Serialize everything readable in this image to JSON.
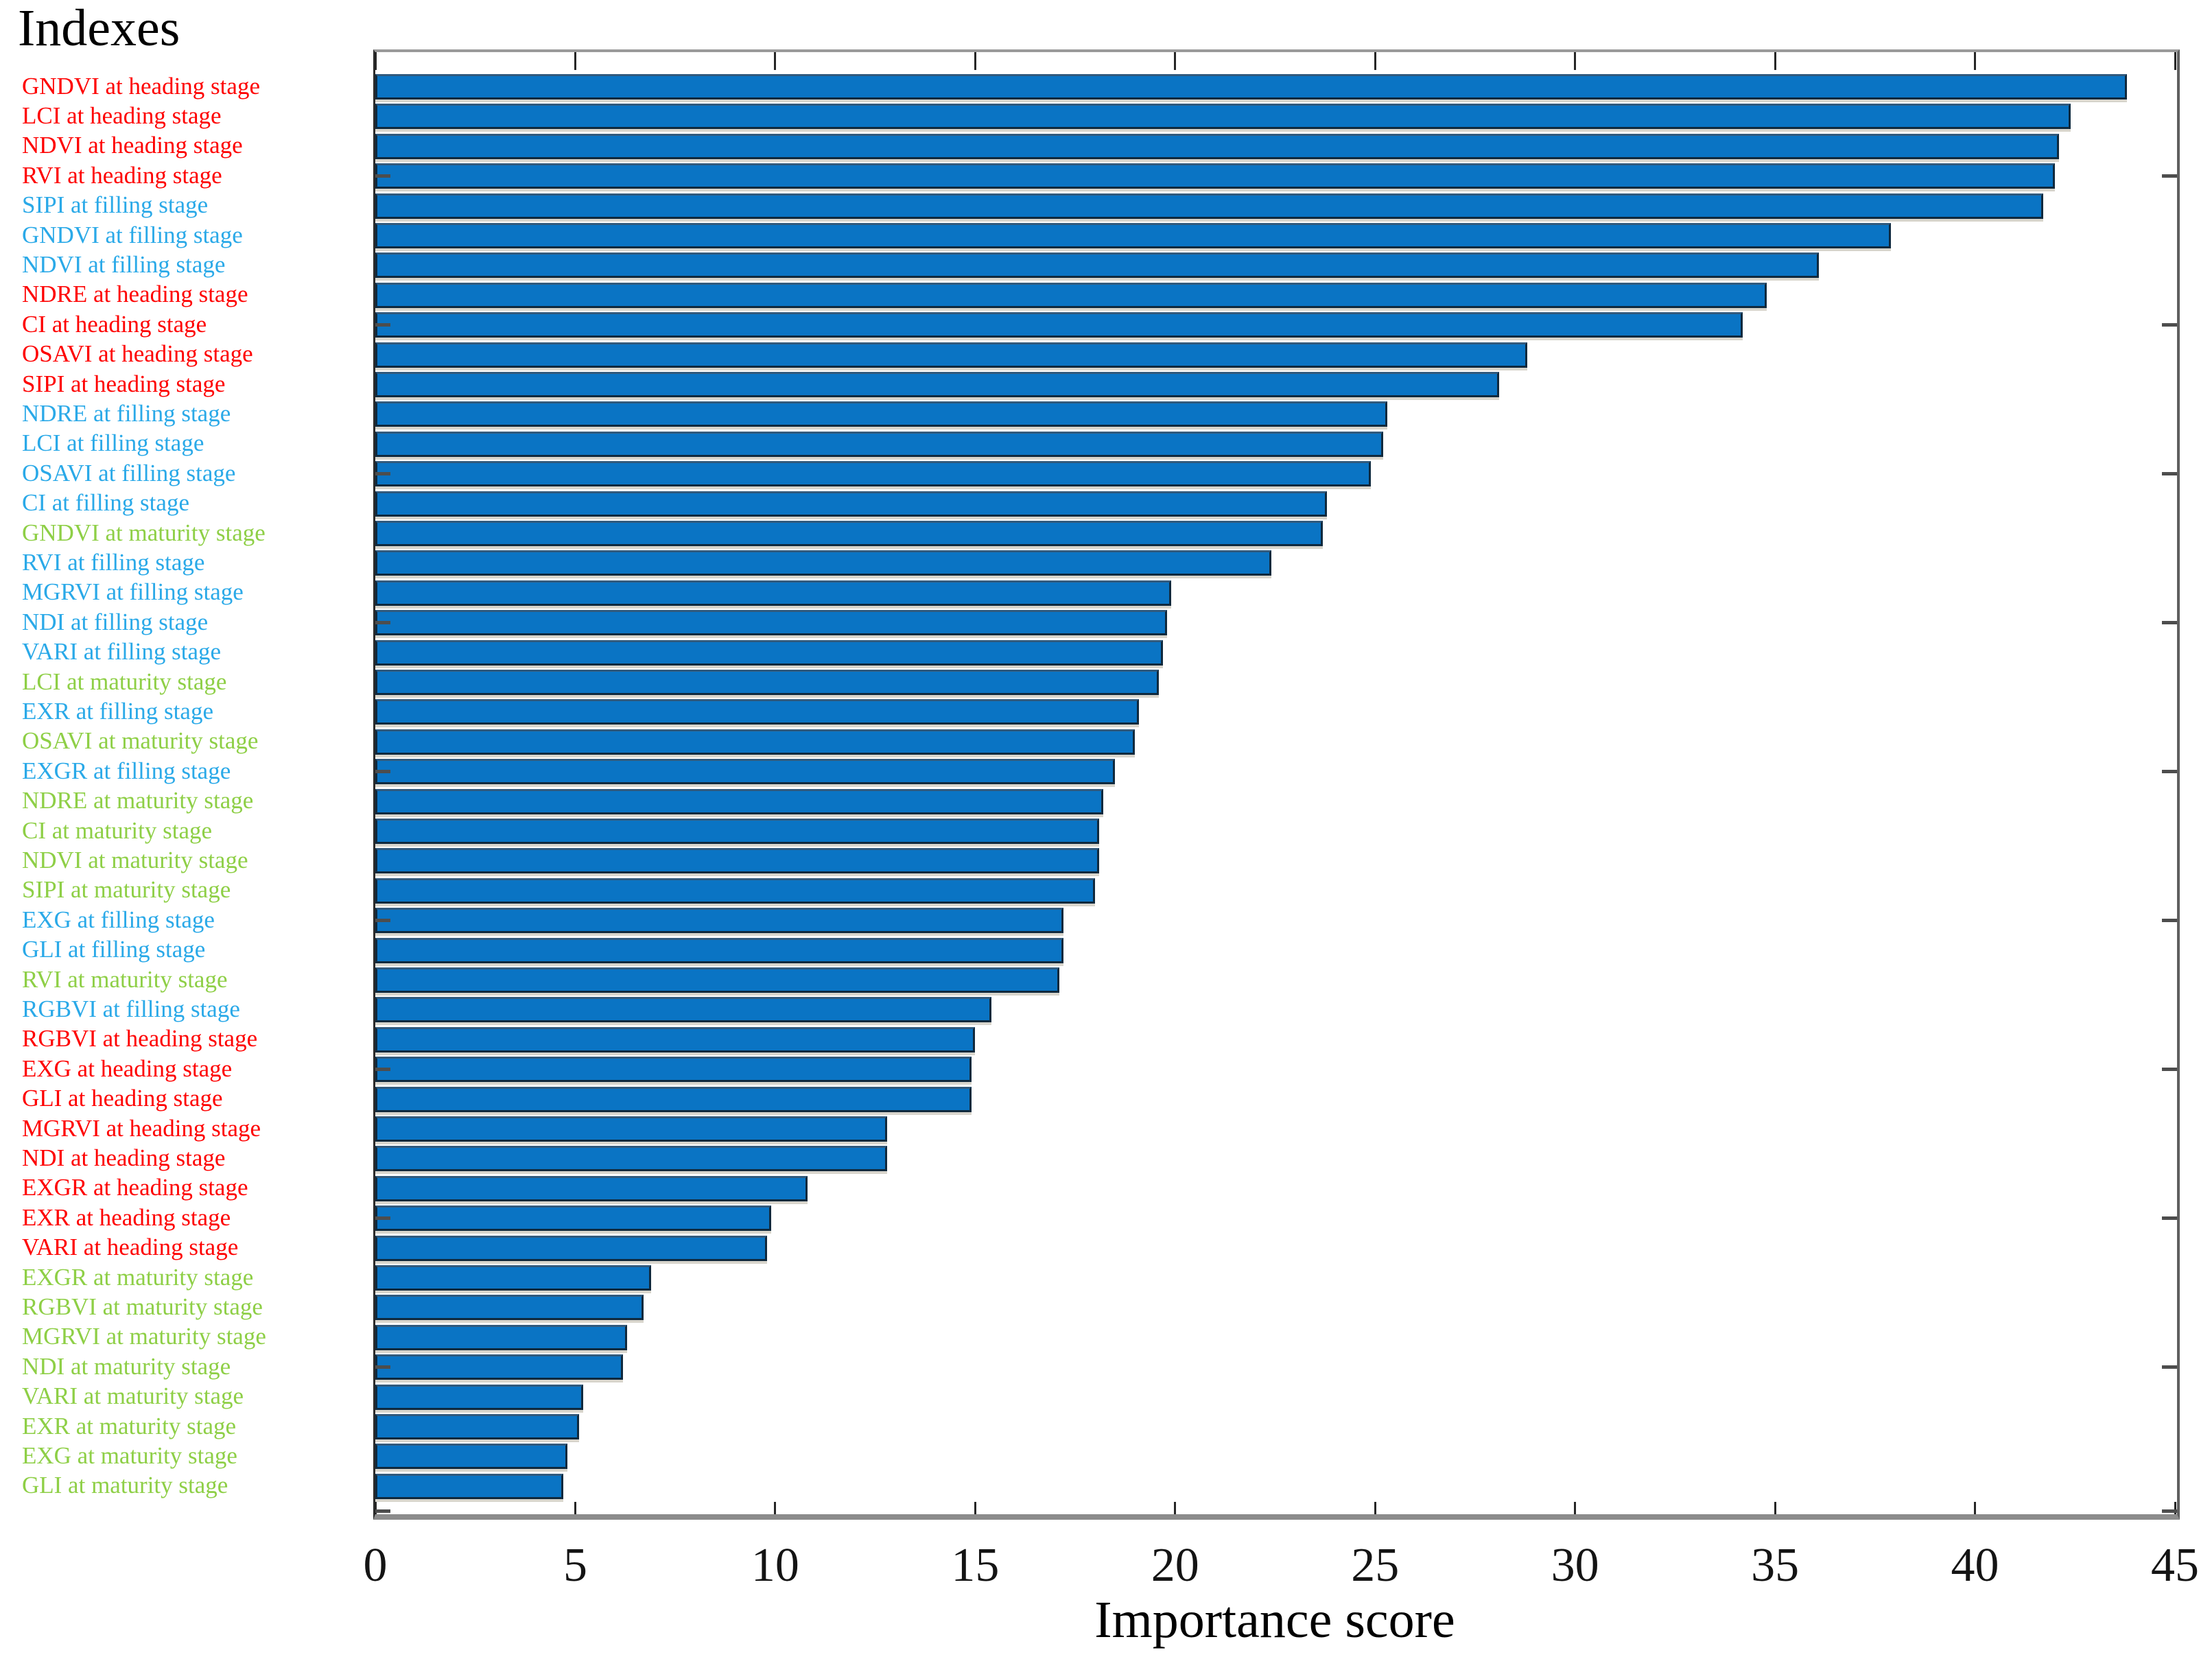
{
  "chart_data": {
    "type": "bar",
    "orientation": "horizontal",
    "title": "Indexes",
    "xlabel": "Importance score",
    "xlim": [
      0,
      45
    ],
    "x_ticks": [
      "0",
      "5",
      "10",
      "15",
      "20",
      "25",
      "30",
      "35",
      "40",
      "45"
    ],
    "grid": false,
    "legend_position": "none",
    "stage_legend_by_text_color": {
      "heading": "red labels = heading stage",
      "filling": "blue labels = filling stage",
      "maturity": "green labels = maturity stage"
    },
    "colors": {
      "bar_fill": "#0a74c4",
      "bar_edge": "#10293d",
      "bar_edge_top": "#315a7d",
      "gap_shadow": "#d8d5cc",
      "stage_heading": "#fe0000",
      "stage_filling": "#2aa9e8",
      "stage_maturity": "#8ecf46",
      "axis_top": "#9a9a9a",
      "axis_right": "#5f5f5f",
      "axis_left": "#2b2b2b",
      "axis_bottom": "#8c8c8c",
      "tick_color": "#262626",
      "ydash_color": "#4d4d4d",
      "text_color": "#141414"
    },
    "bars": [
      {
        "label": "GNDVI at heading stage",
        "index": "GNDVI",
        "stage": "heading",
        "value": 43.8
      },
      {
        "label": "LCI at heading stage",
        "index": "LCI",
        "stage": "heading",
        "value": 42.4
      },
      {
        "label": "NDVI at heading stage",
        "index": "NDVI",
        "stage": "heading",
        "value": 42.1
      },
      {
        "label": "RVI at heading stage",
        "index": "RVI",
        "stage": "heading",
        "value": 42.0
      },
      {
        "label": "SIPI at filling stage",
        "index": "SIPI",
        "stage": "filling",
        "value": 41.7
      },
      {
        "label": "GNDVI at filling stage",
        "index": "GNDVI",
        "stage": "filling",
        "value": 37.9
      },
      {
        "label": "NDVI at filling stage",
        "index": "NDVI",
        "stage": "filling",
        "value": 36.1
      },
      {
        "label": "NDRE at heading stage",
        "index": "NDRE",
        "stage": "heading",
        "value": 34.8
      },
      {
        "label": "CI at heading stage",
        "index": "CI",
        "stage": "heading",
        "value": 34.2
      },
      {
        "label": "OSAVI at heading stage",
        "index": "OSAVI",
        "stage": "heading",
        "value": 28.8
      },
      {
        "label": "SIPI at heading stage",
        "index": "SIPI",
        "stage": "heading",
        "value": 28.1
      },
      {
        "label": "NDRE at filling stage",
        "index": "NDRE",
        "stage": "filling",
        "value": 25.3
      },
      {
        "label": "LCI at filling stage",
        "index": "LCI",
        "stage": "filling",
        "value": 25.2
      },
      {
        "label": "OSAVI at filling stage",
        "index": "OSAVI",
        "stage": "filling",
        "value": 24.9
      },
      {
        "label": "CI at filling stage",
        "index": "CI",
        "stage": "filling",
        "value": 23.8
      },
      {
        "label": "GNDVI at maturity stage",
        "index": "GNDVI",
        "stage": "maturity",
        "value": 23.7
      },
      {
        "label": "RVI at filling stage",
        "index": "RVI",
        "stage": "filling",
        "value": 22.4
      },
      {
        "label": "MGRVI at filling stage",
        "index": "MGRVI",
        "stage": "filling",
        "value": 19.9
      },
      {
        "label": "NDI at filling stage",
        "index": "NDI",
        "stage": "filling",
        "value": 19.8
      },
      {
        "label": "VARI at filling stage",
        "index": "VARI",
        "stage": "filling",
        "value": 19.7
      },
      {
        "label": "LCI at maturity stage",
        "index": "LCI",
        "stage": "maturity",
        "value": 19.6
      },
      {
        "label": "EXR at filling stage",
        "index": "EXR",
        "stage": "filling",
        "value": 19.1
      },
      {
        "label": "OSAVI at maturity stage",
        "index": "OSAVI",
        "stage": "maturity",
        "value": 19.0
      },
      {
        "label": "EXGR at filling stage",
        "index": "EXGR",
        "stage": "filling",
        "value": 18.5
      },
      {
        "label": "NDRE at maturity stage",
        "index": "NDRE",
        "stage": "maturity",
        "value": 18.2
      },
      {
        "label": "CI at maturity stage",
        "index": "CI",
        "stage": "maturity",
        "value": 18.1
      },
      {
        "label": "NDVI at maturity stage",
        "index": "NDVI",
        "stage": "maturity",
        "value": 18.1
      },
      {
        "label": "SIPI at maturity stage",
        "index": "SIPI",
        "stage": "maturity",
        "value": 18.0
      },
      {
        "label": "EXG at filling stage",
        "index": "EXG",
        "stage": "filling",
        "value": 17.2
      },
      {
        "label": "GLI at filling stage",
        "index": "GLI",
        "stage": "filling",
        "value": 17.2
      },
      {
        "label": "RVI at maturity stage",
        "index": "RVI",
        "stage": "maturity",
        "value": 17.1
      },
      {
        "label": "RGBVI at filling stage",
        "index": "RGBVI",
        "stage": "filling",
        "value": 15.4
      },
      {
        "label": "RGBVI at heading stage",
        "index": "RGBVI",
        "stage": "heading",
        "value": 15.0
      },
      {
        "label": "EXG at heading stage",
        "index": "EXG",
        "stage": "heading",
        "value": 14.9
      },
      {
        "label": "GLI at heading stage",
        "index": "GLI",
        "stage": "heading",
        "value": 14.9
      },
      {
        "label": "MGRVI at heading stage",
        "index": "MGRVI",
        "stage": "heading",
        "value": 12.8
      },
      {
        "label": "NDI at heading stage",
        "index": "NDI",
        "stage": "heading",
        "value": 12.8
      },
      {
        "label": "EXGR at heading stage",
        "index": "EXGR",
        "stage": "heading",
        "value": 10.8
      },
      {
        "label": "EXR at heading stage",
        "index": "EXR",
        "stage": "heading",
        "value": 9.9
      },
      {
        "label": "VARI at heading stage",
        "index": "VARI",
        "stage": "heading",
        "value": 9.8
      },
      {
        "label": "EXGR at maturity stage",
        "index": "EXGR",
        "stage": "maturity",
        "value": 6.9
      },
      {
        "label": "RGBVI at maturity stage",
        "index": "RGBVI",
        "stage": "maturity",
        "value": 6.7
      },
      {
        "label": "MGRVI at maturity stage",
        "index": "MGRVI",
        "stage": "maturity",
        "value": 6.3
      },
      {
        "label": "NDI at maturity stage",
        "index": "NDI",
        "stage": "maturity",
        "value": 6.2
      },
      {
        "label": "VARI at maturity stage",
        "index": "VARI",
        "stage": "maturity",
        "value": 5.2
      },
      {
        "label": "EXR at maturity stage",
        "index": "EXR",
        "stage": "maturity",
        "value": 5.1
      },
      {
        "label": "EXG at maturity stage",
        "index": "EXG",
        "stage": "maturity",
        "value": 4.8
      },
      {
        "label": "GLI at maturity stage",
        "index": "GLI",
        "stage": "maturity",
        "value": 4.7
      }
    ]
  }
}
